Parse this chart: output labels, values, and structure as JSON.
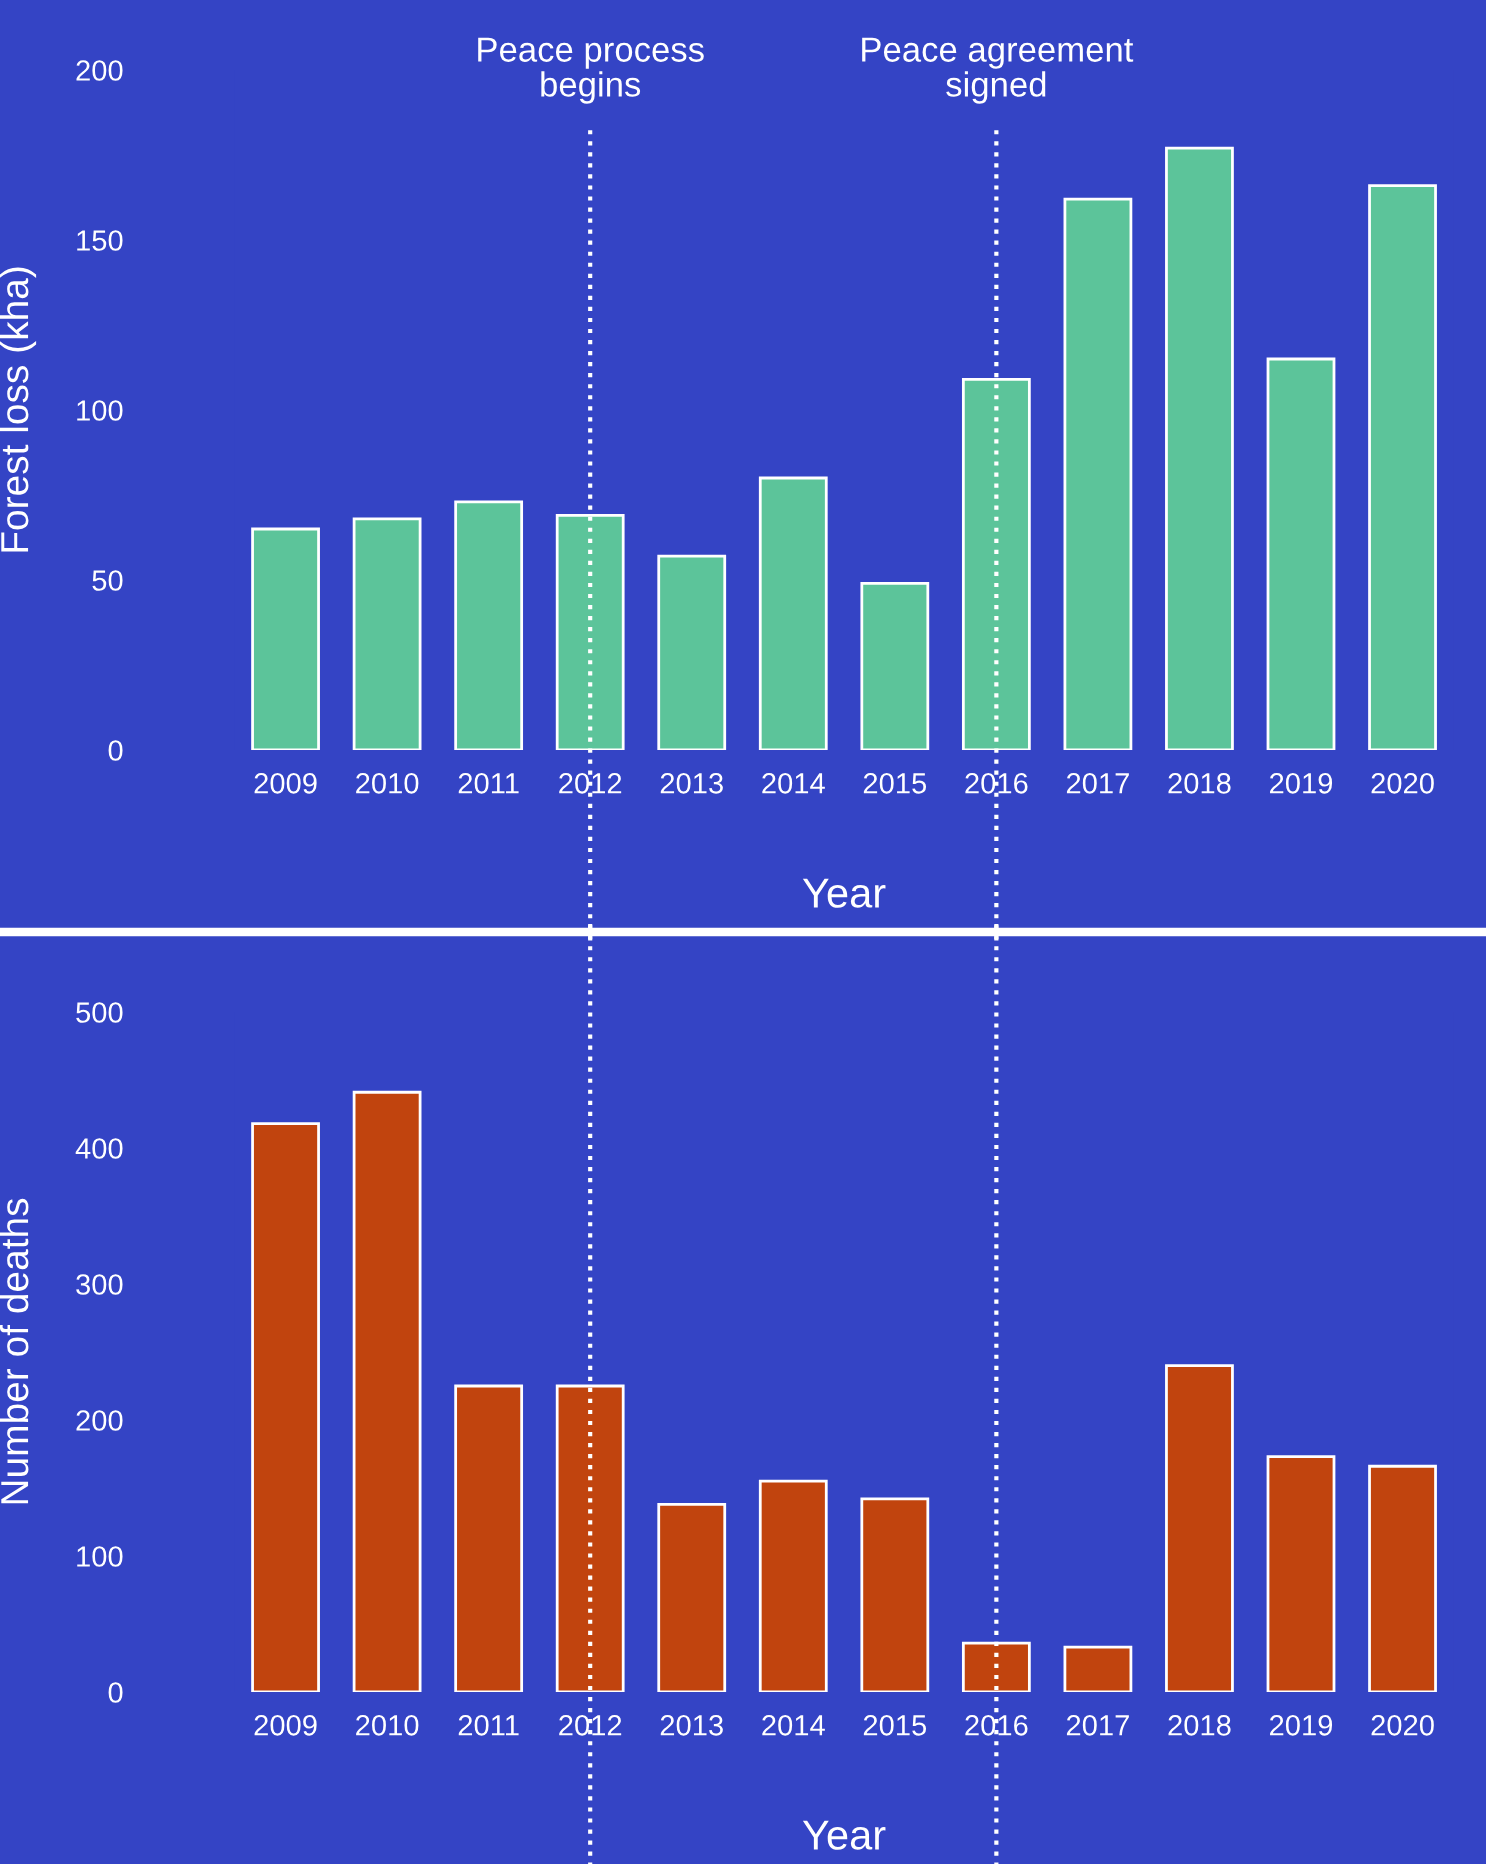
{
  "chart_data": [
    {
      "type": "bar",
      "categories": [
        "2009",
        "2010",
        "2011",
        "2012",
        "2013",
        "2014",
        "2015",
        "2016",
        "2017",
        "2018",
        "2019",
        "2020"
      ],
      "series": [
        {
          "color": "#5cc49a",
          "values": [
            65,
            68,
            73,
            69,
            57,
            80,
            49,
            109,
            162,
            177,
            115,
            166
          ]
        }
      ],
      "ylim": [
        0,
        200
      ],
      "yticks": [
        0,
        50,
        100,
        150,
        200
      ],
      "xlabel": "Year",
      "ylabel": "Forest loss (kha)",
      "ref_lines": [
        {
          "axis": "x",
          "value": "2012",
          "label": "Peace process\nbegins",
          "color": "#ffffff",
          "line_style": "dotted"
        },
        {
          "axis": "x",
          "value": "2016",
          "label": "Peace agreement\nsigned",
          "color": "#ffffff",
          "line_style": "dotted"
        }
      ]
    },
    {
      "type": "bar",
      "categories": [
        "2009",
        "2010",
        "2011",
        "2012",
        "2013",
        "2014",
        "2015",
        "2016",
        "2017",
        "2018",
        "2019",
        "2020"
      ],
      "series": [
        {
          "color": "#c1440e",
          "values": [
            418,
            441,
            225,
            225,
            138,
            155,
            142,
            36,
            33,
            240,
            173,
            166
          ]
        }
      ],
      "ylim": [
        0,
        500
      ],
      "yticks": [
        0,
        100,
        200,
        300,
        400,
        500
      ],
      "xlabel": "Year",
      "ylabel": "Number of deaths",
      "ref_lines": [
        {
          "axis": "x",
          "value": "2012",
          "color": "#ffffff",
          "line_style": "dotted"
        },
        {
          "axis": "x",
          "value": "2016",
          "color": "#ffffff",
          "line_style": "dotted"
        }
      ]
    }
  ]
}
